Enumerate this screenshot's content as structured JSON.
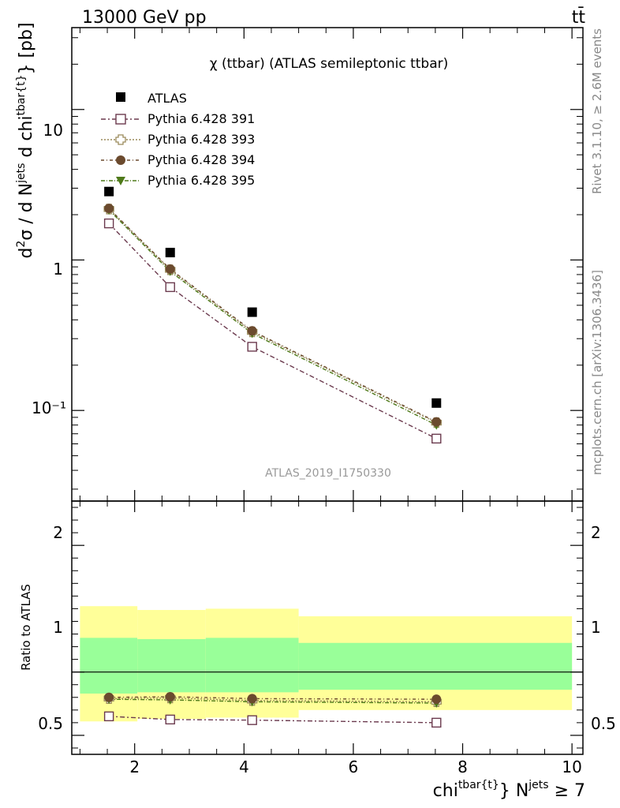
{
  "header": {
    "energy_label": "13000 GeV pp",
    "process_label": "tt̄"
  },
  "side_labels": {
    "rivet": "Rivet 3.1.10, ≥ 2.6M events",
    "mcplots": "mcplots.cern.ch [arXiv:1306.3436]"
  },
  "chart_data": [
    {
      "type": "line",
      "title": "χ (ttbar) (ATLAS semileptonic ttbar)",
      "watermark": "ATLAS_2019_I1750330",
      "ylabel": "d²σ / d N^jets d chi^tbar{t}} [pb]",
      "yscale": "log",
      "ylim": [
        0.025,
        35
      ],
      "xlim": [
        0.85,
        10.2
      ],
      "ytick_labels": [
        "10⁻¹",
        "1",
        "10"
      ],
      "legend_position": "top-left",
      "x": [
        1.53,
        2.65,
        4.15,
        7.52
      ],
      "series": [
        {
          "name": "ATLAS",
          "color": "#000000",
          "marker": "square-filled",
          "values": [
            2.85,
            1.12,
            0.45,
            0.112
          ]
        },
        {
          "name": "Pythia 6.428 391",
          "color": "#6b3a4e",
          "marker": "square-open",
          "values": [
            1.75,
            0.66,
            0.265,
            0.065
          ]
        },
        {
          "name": "Pythia 6.428 393",
          "color": "#9a8a5a",
          "marker": "cross-open",
          "values": [
            2.18,
            0.86,
            0.333,
            0.083
          ]
        },
        {
          "name": "Pythia 6.428 394",
          "color": "#6b4a2e",
          "marker": "circle-filled",
          "values": [
            2.2,
            0.87,
            0.338,
            0.084
          ]
        },
        {
          "name": "Pythia 6.428 395",
          "color": "#4f7a1a",
          "marker": "triangle-down-filled",
          "values": [
            2.15,
            0.84,
            0.325,
            0.08
          ]
        }
      ]
    },
    {
      "type": "line",
      "ylabel": "Ratio to ATLAS",
      "xlabel": "chi^tbar{t}} N^jets ≥ 7",
      "ylim": [
        0.35,
        2.35
      ],
      "xlim": [
        0.85,
        10.2
      ],
      "xticks": [
        2,
        4,
        6,
        8,
        10
      ],
      "xtick_labels": [
        "2",
        "4",
        "6",
        "8",
        "10"
      ],
      "yticks": [
        0.5,
        1,
        2
      ],
      "ytick_labels": [
        "0.5",
        "1",
        "2"
      ],
      "reference_line": 1,
      "bands": [
        {
          "x_low": 1.0,
          "x_high": 2.05,
          "inner": [
            0.83,
            1.27
          ],
          "outer": [
            0.61,
            1.52
          ]
        },
        {
          "x_low": 2.05,
          "x_high": 3.3,
          "inner": [
            0.84,
            1.26
          ],
          "outer": [
            0.63,
            1.49
          ]
        },
        {
          "x_low": 3.3,
          "x_high": 5.0,
          "inner": [
            0.84,
            1.27
          ],
          "outer": [
            0.64,
            1.5
          ]
        },
        {
          "x_low": 5.0,
          "x_high": 10.0,
          "inner": [
            0.86,
            1.23
          ],
          "outer": [
            0.7,
            1.44
          ]
        }
      ],
      "band_colors": {
        "inner": "#99ff99",
        "outer": "#ffff99"
      },
      "x": [
        1.53,
        2.65,
        4.15,
        7.52
      ],
      "series": [
        {
          "name": "Pythia 6.428 391",
          "color": "#6b3a4e",
          "marker": "square-open",
          "values": [
            0.65,
            0.625,
            0.62,
            0.6
          ]
        },
        {
          "name": "Pythia 6.428 393",
          "color": "#9a8a5a",
          "marker": "cross-open",
          "values": [
            0.79,
            0.795,
            0.775,
            0.765
          ]
        },
        {
          "name": "Pythia 6.428 394",
          "color": "#6b4a2e",
          "marker": "circle-filled",
          "values": [
            0.8,
            0.805,
            0.79,
            0.785
          ]
        },
        {
          "name": "Pythia 6.428 395",
          "color": "#4f7a1a",
          "marker": "triangle-down-filled",
          "values": [
            0.785,
            0.78,
            0.765,
            0.755
          ]
        }
      ]
    }
  ]
}
